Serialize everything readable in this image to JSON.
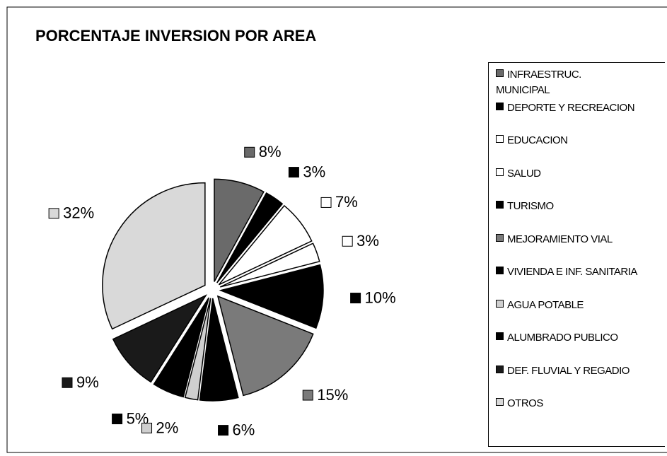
{
  "chart_data": {
    "type": "pie",
    "title": "PORCENTAJE INVERSION POR AREA",
    "categories": [
      "INFRAESTRUC. MUNICIPAL",
      "DEPORTE Y RECREACION",
      "EDUCACION",
      "SALUD",
      "TURISMO",
      "MEJORAMIENTO VIAL",
      "VIVIENDA E INF. SANITARIA",
      "AGUA POTABLE",
      "ALUMBRADO PUBLICO",
      "DEF. FLUVIAL Y REGADIO",
      "OTROS"
    ],
    "values": [
      8,
      3,
      7,
      3,
      10,
      15,
      6,
      2,
      5,
      9,
      32
    ],
    "value_labels": [
      "8%",
      "3%",
      "7%",
      "3%",
      "10%",
      "15%",
      "6%",
      "2%",
      "5%",
      "9%",
      "32%"
    ],
    "colors": [
      "#6a6a6a",
      "#000000",
      "#ffffff",
      "#ffffff",
      "#000000",
      "#7a7a7a",
      "#000000",
      "#cfcfcf",
      "#000000",
      "#1a1a1a",
      "#d9d9d9"
    ],
    "legend": "right"
  }
}
